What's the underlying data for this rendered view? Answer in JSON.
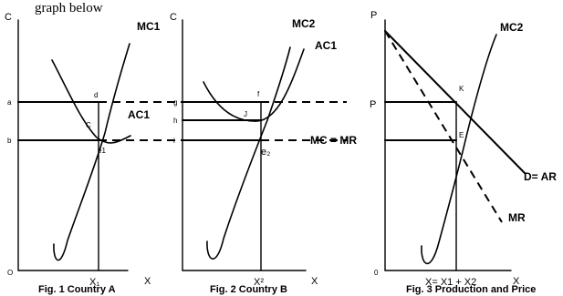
{
  "header": {
    "partial_text": "graph below"
  },
  "figure1": {
    "y_axis_label": "C",
    "x_axis_label": "X",
    "origin_label": "O",
    "x_point": "X₁",
    "level_a": "a",
    "level_b": "b",
    "point_d": "d",
    "point_c": "C",
    "point_e1": "e1",
    "curve_mc": "MC1",
    "curve_ac": "AC1",
    "caption": "Fig. 1 Country A"
  },
  "figure2": {
    "y_axis_label": "C",
    "x_axis_label": "X",
    "x_point": "X²",
    "level_g": "g",
    "level_h": "h",
    "level_i": "i",
    "point_f": "f",
    "point_j": "J",
    "point_e2": "e₂",
    "curve_mc": "MC2",
    "curve_ac": "AC1",
    "caption": "Fig. 2 Country B"
  },
  "figure3": {
    "y_axis_label": "P",
    "x_axis_label": "X",
    "origin_label": "0",
    "price_label": "P",
    "mc_mr_label": "MC = MR",
    "point_k": "K",
    "point_e": "E",
    "curve_mc": "MC2",
    "demand_label": "D= AR",
    "mr_label": "MR",
    "x_point": "X= X1 + X2",
    "caption": "Fig. 3 Production and Price"
  }
}
